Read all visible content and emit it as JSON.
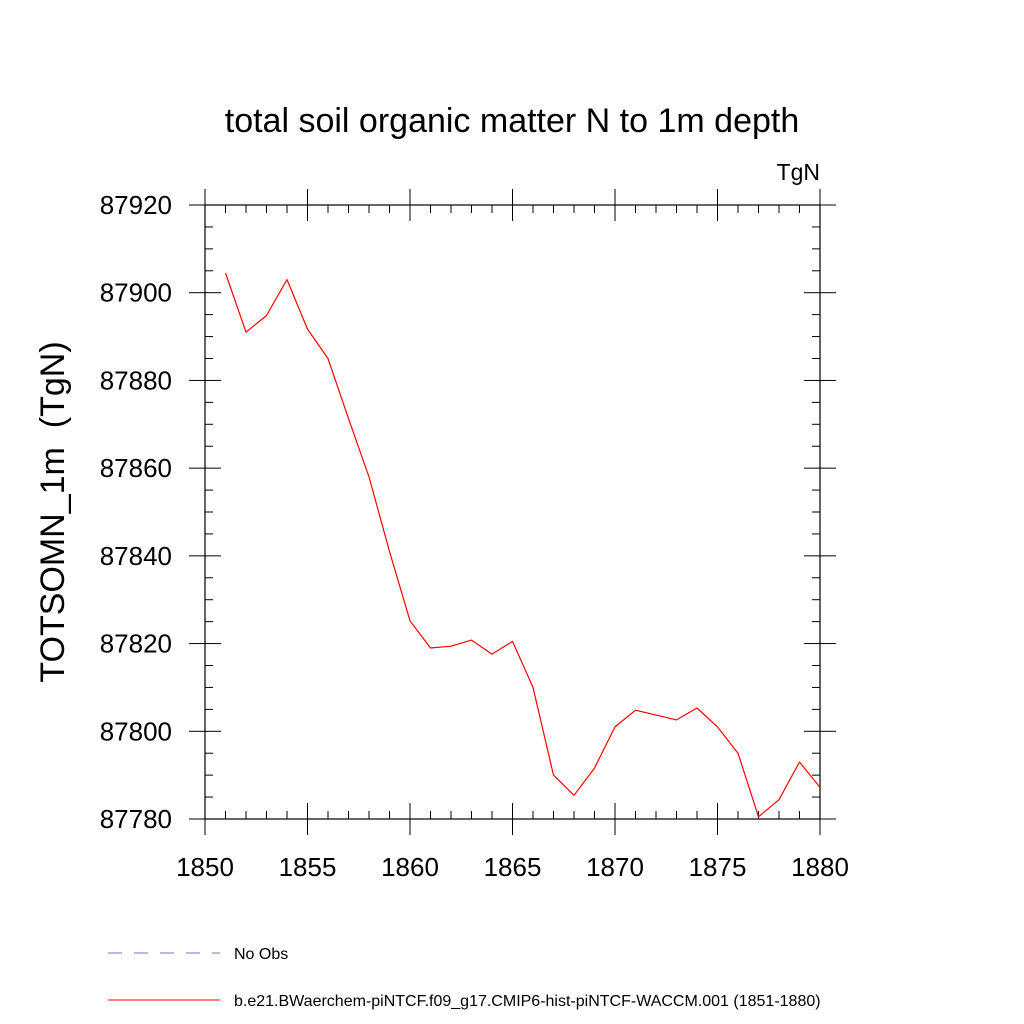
{
  "chart_data": {
    "type": "line",
    "title": "total soil organic matter N to 1m depth",
    "units_label": "TgN",
    "ylabel": "TOTSOMN_1m  (TgN)",
    "xlabel": "",
    "xlim": [
      1850,
      1880
    ],
    "ylim": [
      87780,
      87920
    ],
    "x_ticks": [
      1850,
      1855,
      1860,
      1865,
      1870,
      1875,
      1880
    ],
    "y_ticks": [
      87780,
      87800,
      87820,
      87840,
      87860,
      87880,
      87900,
      87920
    ],
    "x_tick_labels": [
      "1850",
      "1855",
      "1860",
      "1865",
      "1870",
      "1875",
      "1880"
    ],
    "y_tick_labels": [
      "87780",
      "87800",
      "87820",
      "87840",
      "87860",
      "87880",
      "87900",
      "87920"
    ],
    "grid": false,
    "legend_position": "bottom",
    "series": [
      {
        "name": "b.e21.BWaerchem-piNTCF.f09_g17.CMIP6-hist-piNTCF-WACCM.001 (1851-1880)",
        "color": "#ff0000",
        "style": "solid",
        "x": [
          1851,
          1852,
          1853,
          1854,
          1855,
          1856,
          1857,
          1858,
          1859,
          1860,
          1861,
          1862,
          1863,
          1864,
          1865,
          1866,
          1867,
          1868,
          1869,
          1870,
          1871,
          1872,
          1873,
          1874,
          1875,
          1876,
          1877,
          1878,
          1879,
          1880
        ],
        "values": [
          87904.5,
          87891,
          87894.8,
          87903,
          87891.7,
          87885,
          87871.3,
          87858,
          87841,
          87825.2,
          87819,
          87819.4,
          87820.8,
          87817.6,
          87820.5,
          87810,
          87790,
          87785.4,
          87791.6,
          87801,
          87804.8,
          87803.7,
          87802.6,
          87805.3,
          87801,
          87795,
          87780.5,
          87784.4,
          87793,
          87787.2
        ]
      }
    ],
    "legend": [
      {
        "label": "No Obs",
        "color": "#7a6fb8",
        "style": "dashed"
      },
      {
        "label": "b.e21.BWaerchem-piNTCF.f09_g17.CMIP6-hist-piNTCF-WACCM.001 (1851-1880)",
        "color": "#ff0000",
        "style": "solid"
      }
    ]
  }
}
